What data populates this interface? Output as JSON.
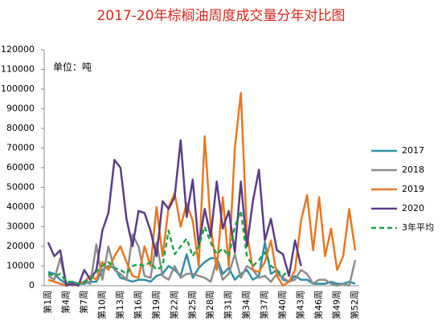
{
  "chart_data": {
    "type": "line",
    "title": "2017-20年棕榈油周度成交量分年对比图",
    "unit_note": "单位：吨",
    "categories": [
      "第1周",
      null,
      null,
      "第4周",
      null,
      null,
      "第7周",
      null,
      null,
      "第10周",
      null,
      null,
      "第13周",
      null,
      null,
      "第16周",
      null,
      null,
      "第19周",
      null,
      null,
      "第22周",
      null,
      null,
      "第25周",
      null,
      null,
      "第28周",
      null,
      null,
      "第31周",
      null,
      null,
      "第34周",
      null,
      null,
      "第37周",
      null,
      null,
      "第40周",
      null,
      null,
      "第43周",
      null,
      null,
      "第46周",
      null,
      null,
      "第49周",
      null,
      null,
      "第52周"
    ],
    "ylim": [
      0,
      120000
    ],
    "yticks": [
      0,
      10000,
      20000,
      30000,
      40000,
      50000,
      60000,
      70000,
      80000,
      90000,
      100000,
      110000,
      120000
    ],
    "grid": false,
    "legend": "right",
    "series": [
      {
        "name": "2017",
        "color": "#2e8fa8",
        "style": "solid",
        "values": [
          7000,
          6000,
          3000,
          1000,
          2000,
          1000,
          1000,
          2000,
          2000,
          8000,
          10000,
          9000,
          4000,
          3000,
          2000,
          3000,
          3000,
          2000,
          5000,
          6000,
          10000,
          8000,
          5000,
          16000,
          4000,
          9000,
          12000,
          14000,
          14000,
          6000,
          9000,
          3000,
          6000,
          8000,
          3000,
          5000,
          22000,
          6000,
          8000,
          3000,
          2000,
          5000,
          3000,
          3000,
          1000,
          1000,
          1000,
          2000,
          1000,
          1000,
          2000,
          1000
        ]
      },
      {
        "name": "2018",
        "color": "#8c8c8c",
        "style": "solid",
        "values": [
          5000,
          3000,
          14000,
          1000,
          0,
          1000,
          2000,
          1000,
          21000,
          3000,
          20000,
          8000,
          6000,
          3000,
          26000,
          20000,
          5000,
          4000,
          22000,
          5000,
          3000,
          10000,
          4000,
          6000,
          6000,
          5000,
          4000,
          2000,
          13000,
          3000,
          6000,
          16000,
          4000,
          10000,
          8000,
          4000,
          5000,
          2000,
          6000,
          4000,
          2000,
          3000,
          8000,
          6000,
          1000,
          3000,
          3000,
          1000,
          0,
          1000,
          0,
          13000
        ]
      },
      {
        "name": "2019",
        "color": "#e87722",
        "style": "solid",
        "values": [
          3000,
          2000,
          1000,
          0,
          1000,
          1000,
          2000,
          5000,
          3000,
          12000,
          8000,
          15000,
          20000,
          12000,
          5000,
          4000,
          20000,
          10000,
          40000,
          15000,
          40000,
          47000,
          30000,
          42000,
          33000,
          10000,
          76000,
          30000,
          8000,
          45000,
          10000,
          70000,
          98000,
          27000,
          8000,
          7000,
          12000,
          23000,
          5000,
          0,
          2000,
          8000,
          33000,
          46000,
          18000,
          45000,
          15000,
          29000,
          8000,
          15000,
          39000,
          18000
        ]
      },
      {
        "name": "2020",
        "color": "#5b3c88",
        "style": "solid",
        "values": [
          22000,
          15000,
          18000,
          0,
          1000,
          0,
          8000,
          3000,
          8000,
          28000,
          37000,
          64000,
          60000,
          34000,
          20000,
          38000,
          37000,
          28000,
          15000,
          43000,
          39000,
          45000,
          74000,
          35000,
          54000,
          20000,
          39000,
          25000,
          53000,
          29000,
          38000,
          17000,
          53000,
          20000,
          43000,
          59000,
          23000,
          34000,
          18000,
          16000,
          5000,
          23000,
          10000,
          null,
          null,
          null,
          null,
          null,
          null,
          null,
          null,
          null
        ]
      },
      {
        "name": "3年平均",
        "color": "#1ea34a",
        "style": "dashed",
        "values": [
          6000,
          5000,
          6000,
          2000,
          2000,
          1000,
          2000,
          3000,
          7000,
          10000,
          12000,
          9000,
          8000,
          6000,
          10000,
          11000,
          10000,
          12000,
          8000,
          10000,
          28000,
          16000,
          20000,
          24000,
          15000,
          20000,
          30000,
          22000,
          16000,
          19000,
          15000,
          30000,
          38000,
          15000,
          10000,
          13000,
          17000,
          10000,
          8000,
          5000,
          8000,
          null,
          null,
          null,
          null,
          null,
          null,
          null,
          null,
          null,
          null,
          null
        ]
      }
    ]
  }
}
